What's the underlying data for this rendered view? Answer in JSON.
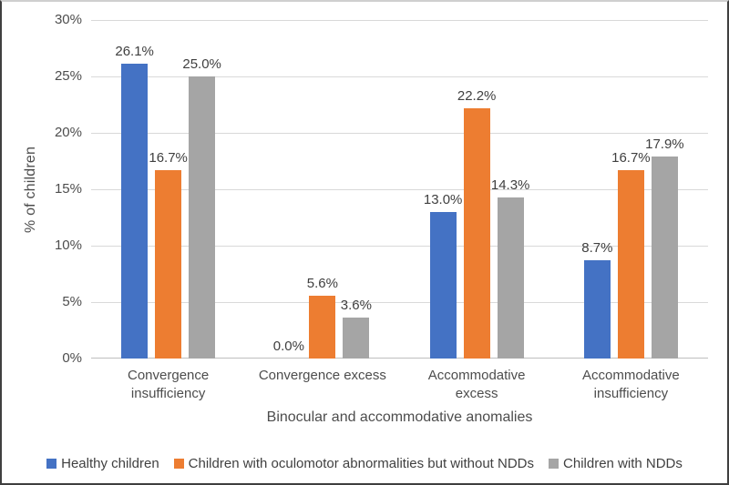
{
  "chart_data": {
    "type": "bar",
    "title": "",
    "xlabel": "Binocular and accommodative anomalies",
    "ylabel": "% of children",
    "ylim": [
      0,
      30
    ],
    "ytick_step": 5,
    "yticks": [
      "0%",
      "5%",
      "10%",
      "15%",
      "20%",
      "25%",
      "30%"
    ],
    "grid": true,
    "legend_position": "bottom",
    "categories": [
      "Convergence insufficiency",
      "Convergence excess",
      "Accommodative excess",
      "Accommodative insufficiency"
    ],
    "series": [
      {
        "name": "Healthy children",
        "color": "#4472C4",
        "values": [
          26.1,
          0.0,
          13.0,
          8.7
        ],
        "labels": [
          "26.1%",
          "0.0%",
          "13.0%",
          "8.7%"
        ]
      },
      {
        "name": "Children with oculomotor abnormalities but without NDDs",
        "color": "#ED7D31",
        "values": [
          16.7,
          5.6,
          22.2,
          16.7
        ],
        "labels": [
          "16.7%",
          "5.6%",
          "22.2%",
          "16.7%"
        ]
      },
      {
        "name": "Children with NDDs",
        "color": "#A5A5A5",
        "values": [
          25.0,
          3.6,
          14.3,
          17.9
        ],
        "labels": [
          "25.0%",
          "3.6%",
          "14.3%",
          "17.9%"
        ]
      }
    ]
  }
}
